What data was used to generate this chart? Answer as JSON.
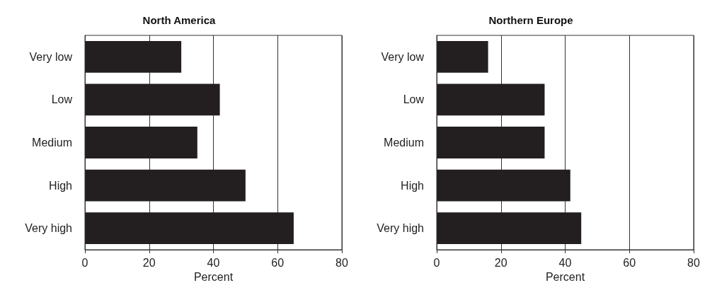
{
  "chart_data": [
    {
      "type": "bar",
      "orientation": "horizontal",
      "title": "North America",
      "xlabel": "Percent",
      "categories": [
        "Very low",
        "Low",
        "Medium",
        "High",
        "Very high"
      ],
      "values": [
        30,
        42,
        35,
        50,
        65
      ],
      "color": "#231f20",
      "xlim": [
        0,
        80
      ],
      "xticks": [
        0,
        20,
        40,
        60,
        80
      ],
      "grid": "x"
    },
    {
      "type": "bar",
      "orientation": "horizontal",
      "title": "Northern Europe",
      "xlabel": "Percent",
      "categories": [
        "Very low",
        "Low",
        "Medium",
        "High",
        "Very high"
      ],
      "values": [
        16,
        33.6,
        33.6,
        41.6,
        45
      ],
      "color": "#231f20",
      "xlim": [
        0,
        80
      ],
      "xticks": [
        0,
        20,
        40,
        60,
        80
      ],
      "grid": "x"
    }
  ]
}
